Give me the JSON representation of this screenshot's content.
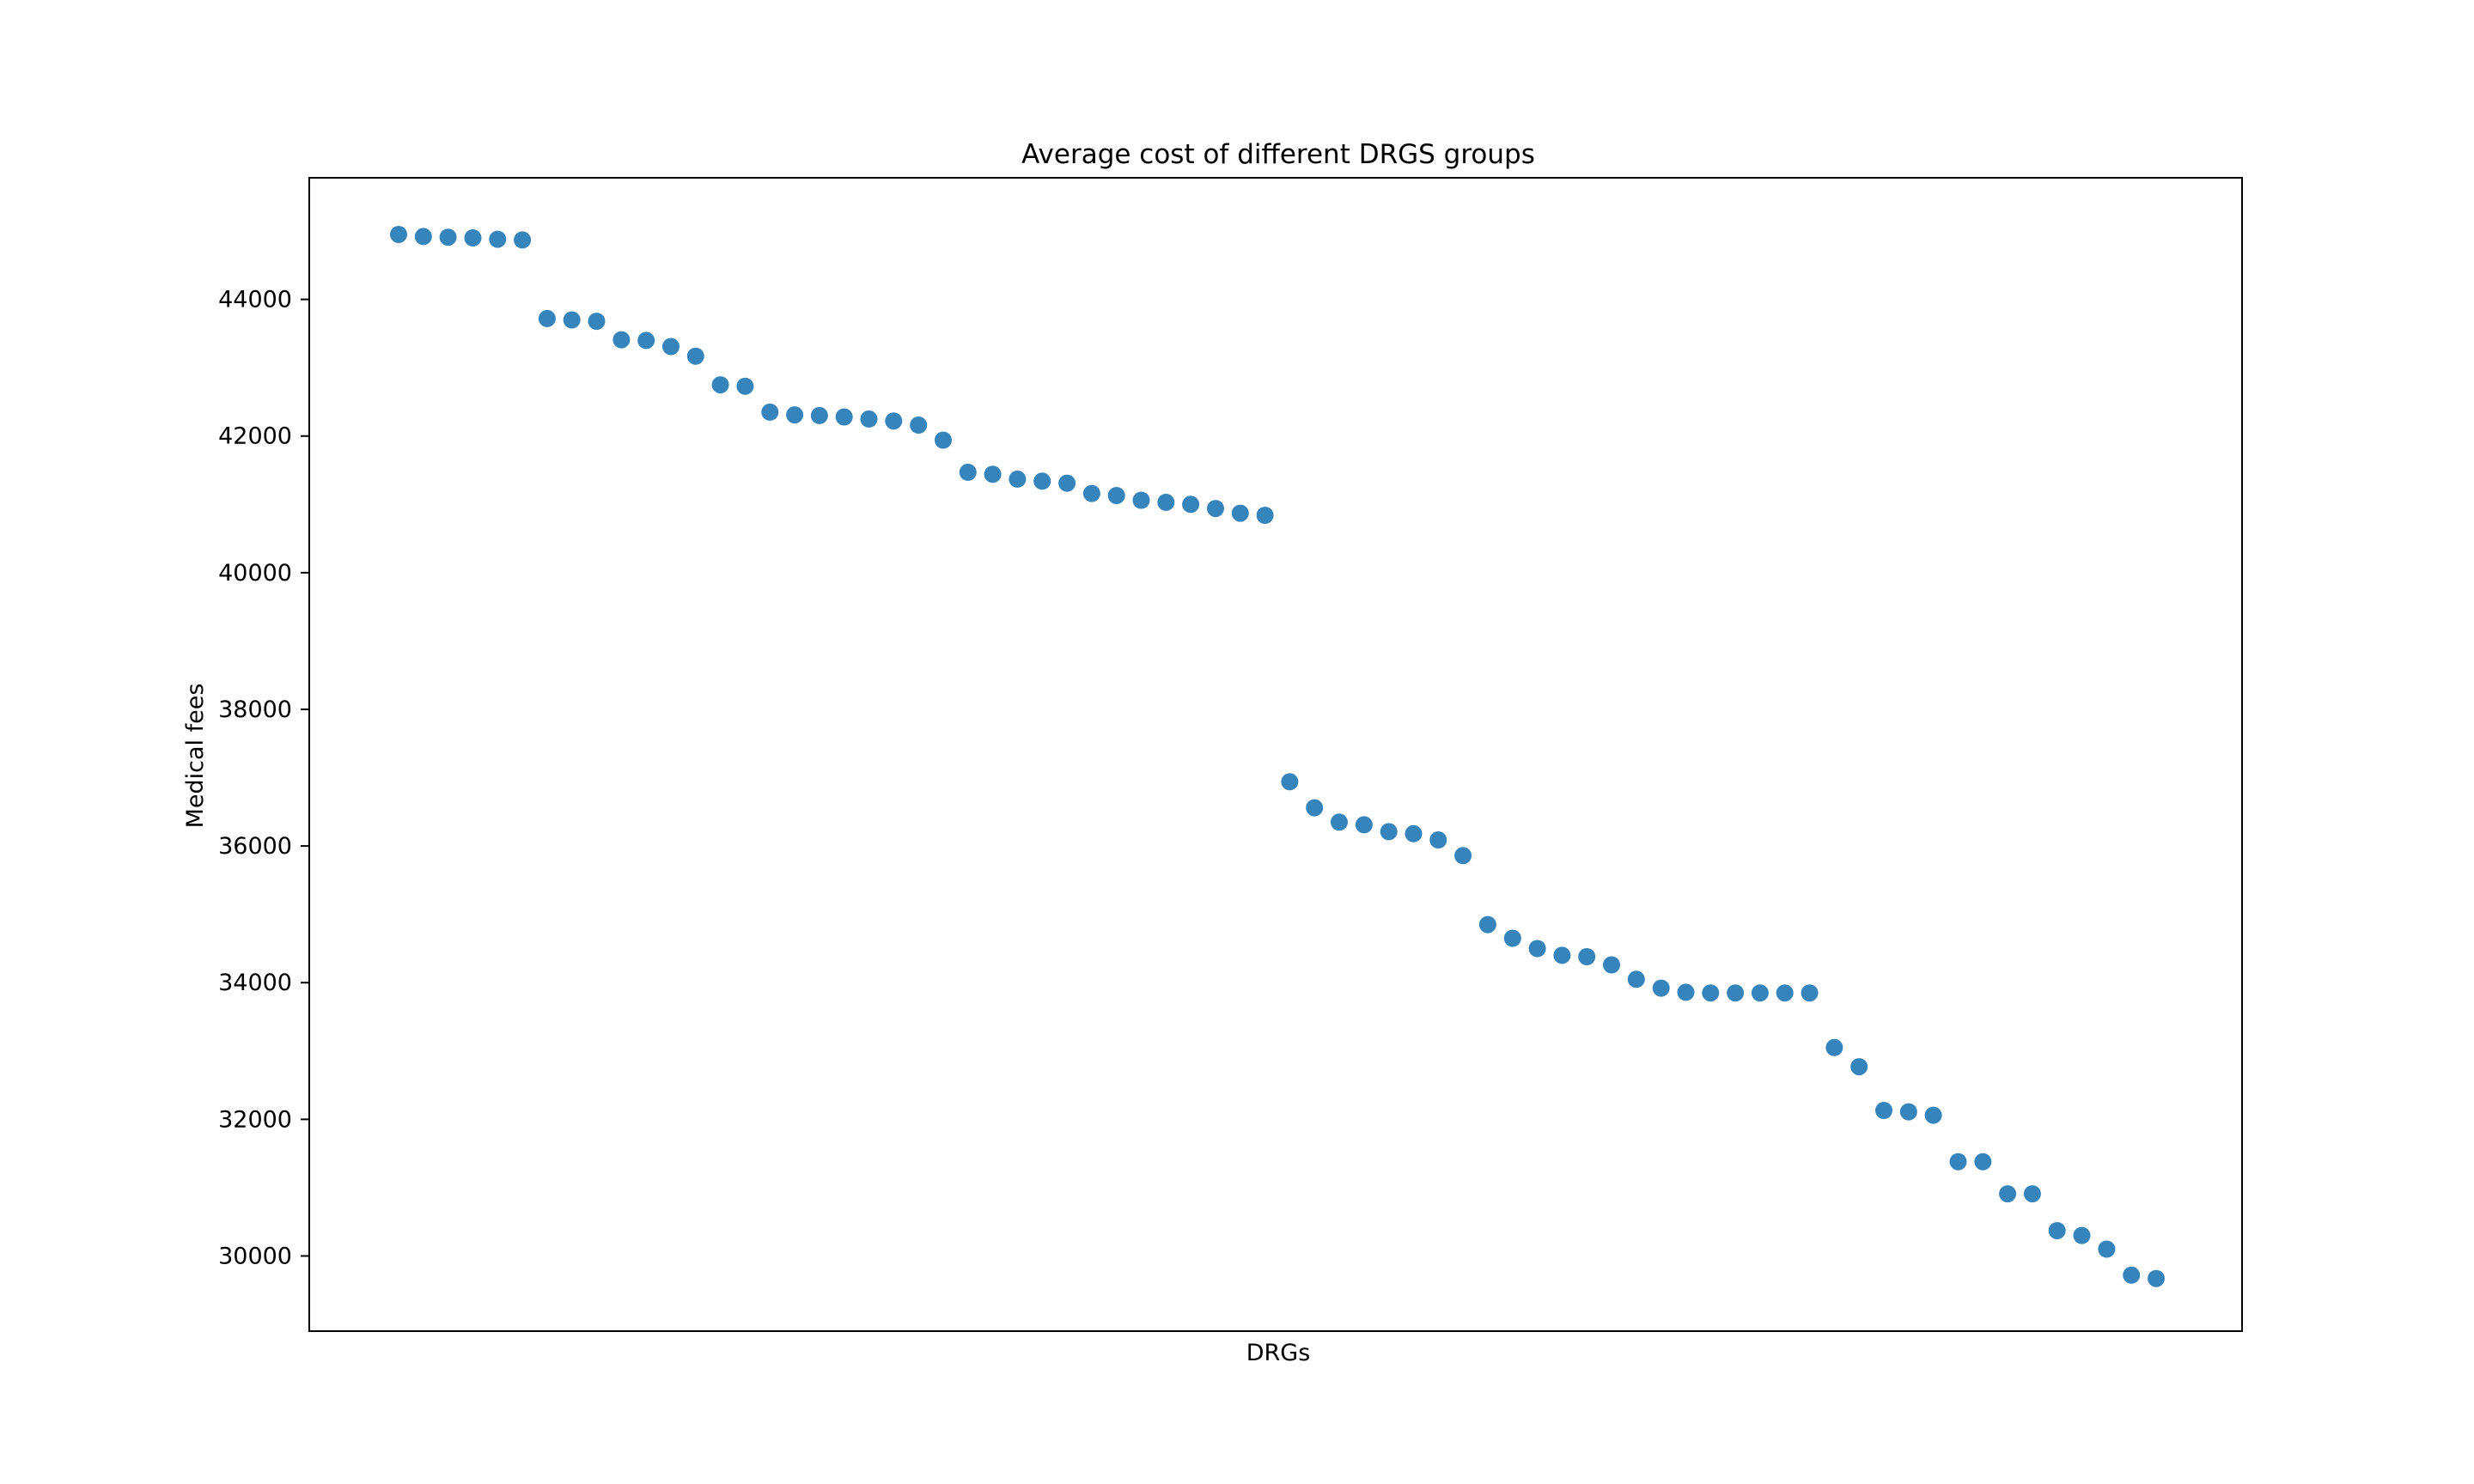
{
  "chart_data": {
    "type": "scatter",
    "title": "Average cost of different DRGS groups",
    "xlabel": "DRGs",
    "ylabel": "Medical fees",
    "x_ticks_shown": false,
    "ylim": [
      28900,
      45780
    ],
    "y_ticks": [
      30000,
      32000,
      34000,
      36000,
      38000,
      40000,
      42000,
      44000
    ],
    "grid": false,
    "legend": "none",
    "marker_color": "#1f77b4",
    "series": [
      {
        "y": [
          44950,
          44920,
          44910,
          44900,
          44880,
          44870,
          43720,
          43700,
          43680,
          43410,
          43400,
          43310,
          43170,
          42750,
          42730,
          42350,
          42310,
          42300,
          42280,
          42250,
          42220,
          42160,
          41940,
          41470,
          41440,
          41370,
          41340,
          41310,
          41160,
          41130,
          41060,
          41030,
          41000,
          40940,
          40870,
          40840,
          36940,
          36560,
          36350,
          36310,
          36210,
          36180,
          36090,
          35860,
          34850,
          34650,
          34500,
          34400,
          34380,
          34260,
          34050,
          33920,
          33860,
          33850,
          33850,
          33850,
          33850,
          33850,
          33050,
          32770,
          32130,
          32110,
          32060,
          31380,
          31380,
          30910,
          30910,
          30370,
          30300,
          30100,
          29720,
          29670
        ]
      }
    ]
  }
}
